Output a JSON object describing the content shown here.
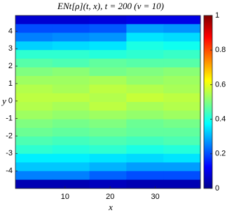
{
  "chart_data": {
    "type": "heatmap",
    "title": "ENt[ρ](t, x), t = 200 (ν = 10)",
    "x_label": "x",
    "y_label": "y",
    "xlim": [
      -1,
      40
    ],
    "ylim": [
      -5,
      4.9
    ],
    "xticks": [
      10,
      20,
      30
    ],
    "yticks": [
      -4,
      -3,
      -2,
      -1,
      0,
      1,
      2,
      3,
      4
    ],
    "clim": [
      0,
      1
    ],
    "cticks": [
      0,
      0.2,
      0.4,
      0.6,
      0.8,
      1
    ],
    "colormap": "jet",
    "z": [
      [
        0.08,
        0.08,
        0.09,
        0.1,
        0.1
      ],
      [
        0.2,
        0.2,
        0.21,
        0.28,
        0.27
      ],
      [
        0.25,
        0.26,
        0.27,
        0.35,
        0.34
      ],
      [
        0.33,
        0.34,
        0.35,
        0.4,
        0.39
      ],
      [
        0.42,
        0.42,
        0.41,
        0.42,
        0.43
      ],
      [
        0.46,
        0.45,
        0.47,
        0.46,
        0.46
      ],
      [
        0.5,
        0.51,
        0.49,
        0.5,
        0.51
      ],
      [
        0.53,
        0.53,
        0.54,
        0.52,
        0.53
      ],
      [
        0.55,
        0.54,
        0.56,
        0.55,
        0.54
      ],
      [
        0.56,
        0.56,
        0.55,
        0.57,
        0.56
      ],
      [
        0.55,
        0.54,
        0.56,
        0.54,
        0.55
      ],
      [
        0.53,
        0.52,
        0.53,
        0.52,
        0.53
      ],
      [
        0.5,
        0.49,
        0.5,
        0.48,
        0.49
      ],
      [
        0.48,
        0.47,
        0.48,
        0.47,
        0.47
      ],
      [
        0.45,
        0.44,
        0.45,
        0.44,
        0.45
      ],
      [
        0.42,
        0.41,
        0.42,
        0.4,
        0.41
      ],
      [
        0.36,
        0.36,
        0.35,
        0.34,
        0.35
      ],
      [
        0.32,
        0.32,
        0.3,
        0.28,
        0.28
      ],
      [
        0.25,
        0.25,
        0.22,
        0.2,
        0.2
      ],
      [
        0.05,
        0.05,
        0.06,
        0.05,
        0.05
      ]
    ]
  }
}
